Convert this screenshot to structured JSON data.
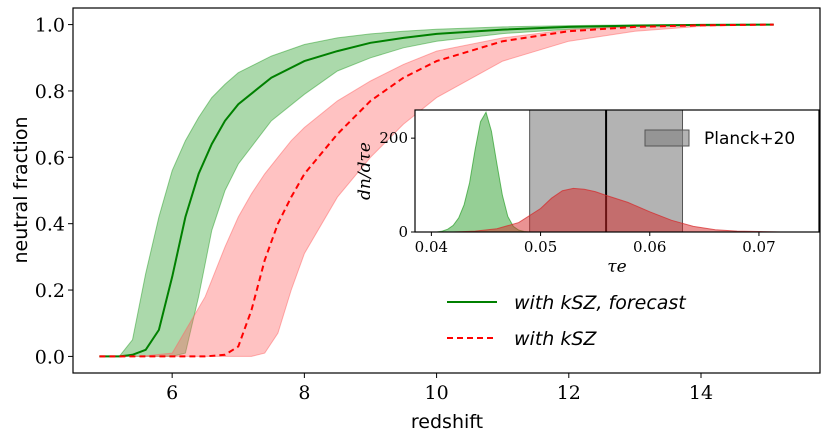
{
  "chart_data": [
    {
      "type": "line",
      "title": "",
      "xlabel": "redshift",
      "ylabel": "neutral fraction",
      "xlim": [
        4.5,
        15.8
      ],
      "ylim": [
        -0.05,
        1.05
      ],
      "xticks": [
        6,
        8,
        10,
        12,
        14
      ],
      "yticks": [
        0.0,
        0.2,
        0.4,
        0.6,
        0.8,
        1.0
      ],
      "xtick_labels": [
        "6",
        "8",
        "10",
        "12",
        "14"
      ],
      "ytick_labels": [
        "0.0",
        "0.2",
        "0.4",
        "0.6",
        "0.8",
        "1.0"
      ],
      "series": [
        {
          "name": "with kSZ, forecast",
          "color": "#008000",
          "style": "solid",
          "x": [
            4.9,
            5.2,
            5.4,
            5.6,
            5.8,
            6.0,
            6.2,
            6.4,
            6.6,
            6.8,
            7.0,
            7.5,
            8.0,
            8.5,
            9.0,
            9.5,
            10.0,
            11.0,
            12.0,
            13.0,
            14.0,
            15.1
          ],
          "y": [
            0.0,
            0.0,
            0.005,
            0.02,
            0.08,
            0.24,
            0.42,
            0.55,
            0.64,
            0.71,
            0.76,
            0.84,
            0.89,
            0.92,
            0.945,
            0.96,
            0.972,
            0.985,
            0.993,
            0.997,
            0.999,
            1.0
          ],
          "band_upper": [
            0.0,
            0.0,
            0.05,
            0.25,
            0.42,
            0.56,
            0.65,
            0.72,
            0.78,
            0.82,
            0.855,
            0.905,
            0.94,
            0.96,
            0.972,
            0.98,
            0.986,
            0.993,
            0.997,
            0.999,
            1.0,
            1.0
          ],
          "band_lower": [
            0.0,
            0.0,
            0.0,
            0.0,
            0.0,
            0.0,
            0.01,
            0.18,
            0.38,
            0.5,
            0.58,
            0.71,
            0.79,
            0.86,
            0.9,
            0.93,
            0.95,
            0.973,
            0.986,
            0.994,
            0.998,
            1.0
          ],
          "band_color": "#2ca02c"
        },
        {
          "name": "with kSZ",
          "color": "#ff0000",
          "style": "dashed",
          "x": [
            4.9,
            5.5,
            6.0,
            6.5,
            6.8,
            7.0,
            7.2,
            7.4,
            7.6,
            7.8,
            8.0,
            8.5,
            9.0,
            9.5,
            10.0,
            11.0,
            12.0,
            13.0,
            14.0,
            15.1
          ],
          "y": [
            0.0,
            0.0,
            0.0,
            0.0,
            0.005,
            0.03,
            0.14,
            0.29,
            0.4,
            0.48,
            0.55,
            0.67,
            0.77,
            0.84,
            0.89,
            0.95,
            0.98,
            0.993,
            0.998,
            1.0
          ],
          "band_upper": [
            0.0,
            0.0,
            0.01,
            0.18,
            0.33,
            0.42,
            0.49,
            0.55,
            0.6,
            0.65,
            0.69,
            0.77,
            0.83,
            0.88,
            0.92,
            0.96,
            0.985,
            0.995,
            0.999,
            1.0
          ],
          "band_lower": [
            0.0,
            0.0,
            0.0,
            0.0,
            0.0,
            0.0,
            0.0,
            0.01,
            0.07,
            0.2,
            0.31,
            0.48,
            0.6,
            0.7,
            0.78,
            0.89,
            0.95,
            0.98,
            0.995,
            1.0
          ],
          "band_color": "#ff6666"
        }
      ],
      "legend": {
        "placement": "lower-right",
        "entries": [
          "with kSZ, forecast",
          "with kSZ"
        ]
      }
    },
    {
      "type": "area",
      "title": "",
      "xlabel": "τe",
      "ylabel": "dn/dτe",
      "xlim": [
        0.0385,
        0.0755
      ],
      "ylim": [
        0,
        260
      ],
      "xticks": [
        0.04,
        0.05,
        0.06,
        0.07
      ],
      "yticks": [
        0,
        200
      ],
      "xtick_labels": [
        "0.04",
        "0.05",
        "0.06",
        "0.07"
      ],
      "ytick_labels": [
        "0",
        "200"
      ],
      "series": [
        {
          "name": "with kSZ, forecast",
          "color": "#2ca02c",
          "x": [
            0.0405,
            0.041,
            0.0415,
            0.042,
            0.0425,
            0.043,
            0.0435,
            0.044,
            0.0445,
            0.045,
            0.0455,
            0.046,
            0.0465,
            0.047,
            0.0475,
            0.048,
            0.0485,
            0.049
          ],
          "values": [
            0,
            2,
            6,
            14,
            30,
            58,
            105,
            175,
            235,
            255,
            215,
            145,
            78,
            33,
            12,
            4,
            1,
            0
          ]
        },
        {
          "name": "with kSZ",
          "color": "#d62728",
          "x": [
            0.042,
            0.044,
            0.046,
            0.048,
            0.05,
            0.051,
            0.052,
            0.053,
            0.054,
            0.055,
            0.056,
            0.058,
            0.06,
            0.062,
            0.064,
            0.066,
            0.068,
            0.07,
            0.072
          ],
          "values": [
            0,
            2,
            7,
            20,
            50,
            72,
            88,
            93,
            91,
            86,
            78,
            63,
            43,
            25,
            12,
            5,
            2,
            1,
            0
          ]
        }
      ],
      "reference": {
        "name": "Planck+20",
        "band": [
          0.049,
          0.063
        ],
        "line": 0.056,
        "band_color": "#808080",
        "line_color": "#000000"
      },
      "legend": {
        "placement": "top-right",
        "entries": [
          "Planck+20"
        ]
      }
    }
  ]
}
